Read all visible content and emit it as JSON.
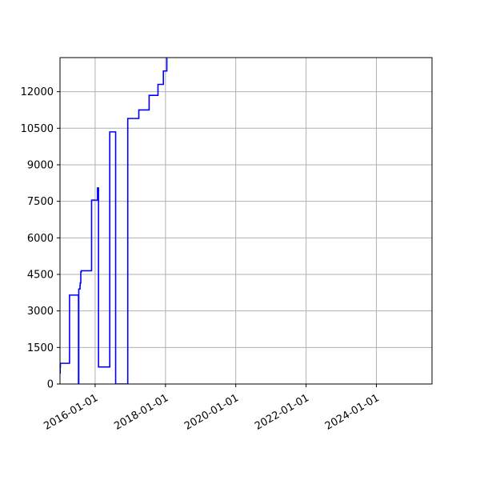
{
  "chart_data": {
    "type": "line",
    "line_style": "step",
    "title": "",
    "xlabel": "",
    "ylabel": "",
    "x_axis": "date",
    "xlim": [
      "2015-01-01",
      "2025-08-01"
    ],
    "ylim": [
      0,
      13400
    ],
    "grid": true,
    "legend": "none",
    "x_ticks": [
      "2016-01-01",
      "2018-01-01",
      "2020-01-01",
      "2022-01-01",
      "2024-01-01"
    ],
    "y_ticks": [
      0,
      1500,
      3000,
      4500,
      6000,
      7500,
      9000,
      10500,
      12000
    ],
    "series": [
      {
        "color": "#0000ff",
        "x": [
          "2015-01-01",
          "2015-01-03",
          "2015-01-05",
          "2015-01-08",
          "2015-04-10",
          "2015-07-10",
          "2015-07-12",
          "2015-07-15",
          "2015-07-28",
          "2015-07-30",
          "2015-08-05",
          "2015-08-10",
          "2015-08-15",
          "2015-11-25",
          "2016-01-26",
          "2016-02-05",
          "2016-06-01",
          "2016-06-25",
          "2016-08-01",
          "2016-12-05",
          "2017-02-01",
          "2017-03-30",
          "2017-05-10",
          "2017-07-15",
          "2017-10-15",
          "2017-12-10",
          "2018-01-15"
        ],
        "values": [
          450,
          700,
          850,
          850,
          3650,
          3650,
          0,
          3900,
          4050,
          4150,
          4600,
          4650,
          4650,
          7550,
          8050,
          700,
          10350,
          10350,
          0,
          10900,
          10900,
          11250,
          11250,
          11850,
          12300,
          12850,
          13400
        ]
      }
    ]
  }
}
